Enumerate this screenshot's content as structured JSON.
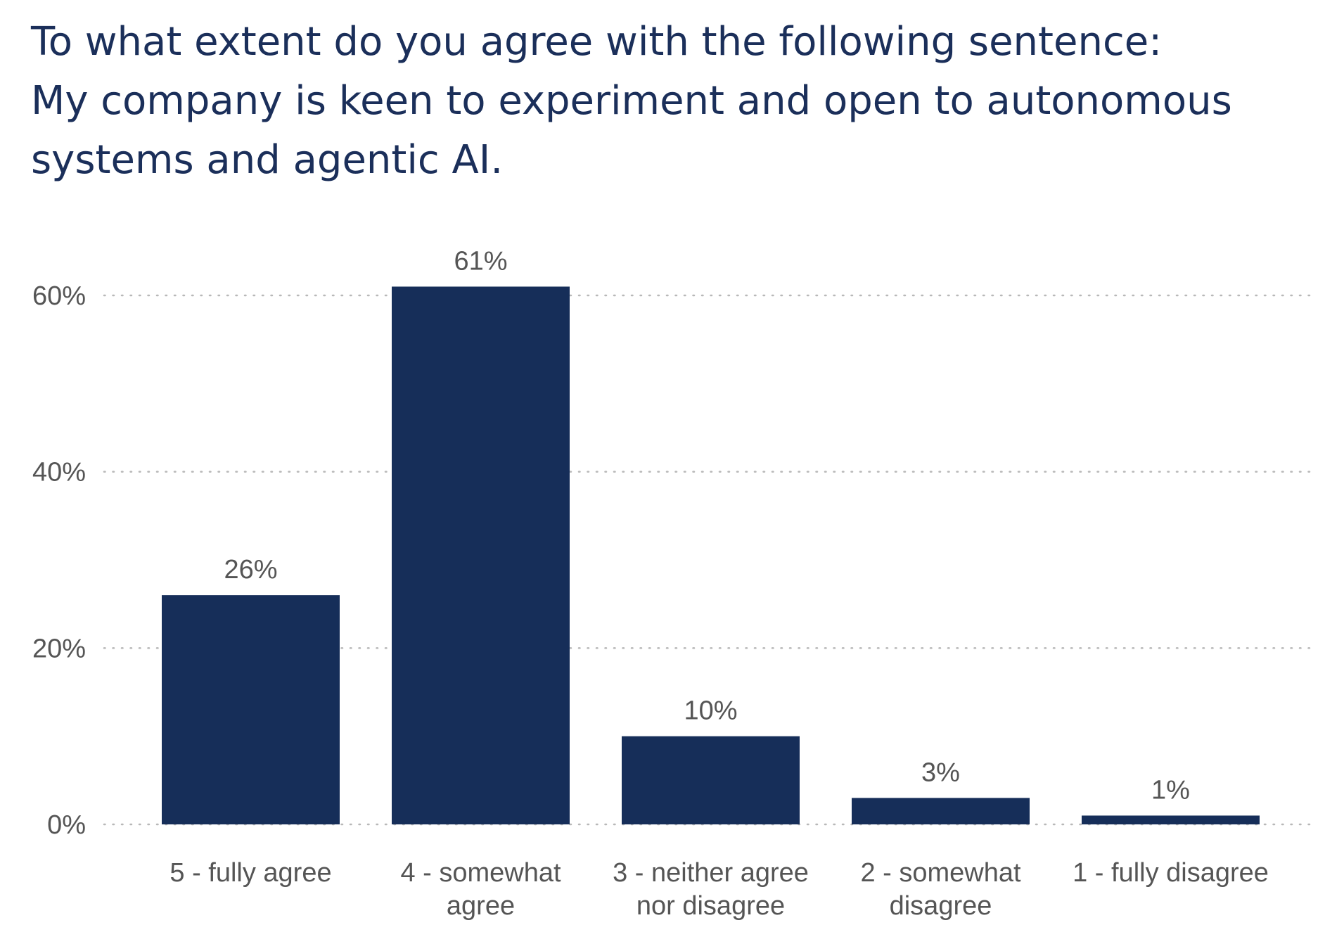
{
  "chart_data": {
    "type": "bar",
    "title": [
      "To what extent do you agree with the following sentence:",
      "My company is keen to experiment and open to autonomous",
      "systems and agentic AI."
    ],
    "categories": [
      [
        "5 - fully agree"
      ],
      [
        "4 - somewhat",
        "agree"
      ],
      [
        "3 - neither agree",
        "nor disagree"
      ],
      [
        "2 - somewhat",
        "disagree"
      ],
      [
        "1 - fully disagree"
      ]
    ],
    "values": [
      26,
      61,
      10,
      3,
      1
    ],
    "value_labels": [
      "26%",
      "61%",
      "10%",
      "3%",
      "1%"
    ],
    "yticks": [
      0,
      20,
      40,
      60
    ],
    "ytick_labels": [
      "0%",
      "20%",
      "40%",
      "60%"
    ],
    "ylim": [
      0,
      61
    ],
    "xlabel": "",
    "ylabel": "",
    "grid": "horizontal-dotted",
    "bar_color": "#162e59",
    "grid_color": "#b8b8b8",
    "text_color": "#555555",
    "title_color": "#1b2f5a"
  }
}
